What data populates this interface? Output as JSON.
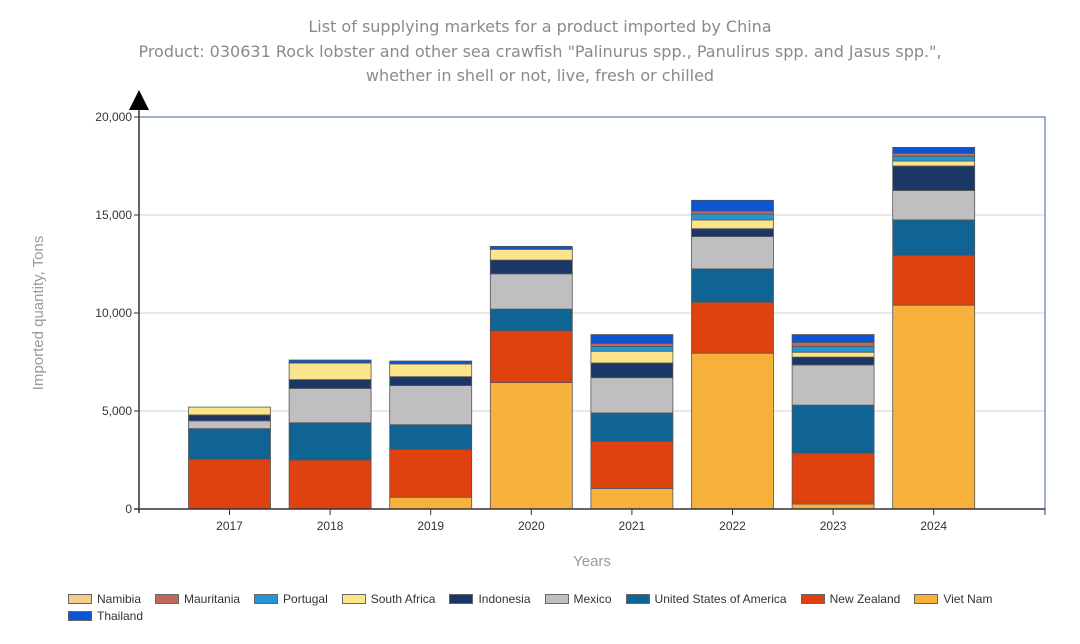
{
  "chart_data": {
    "type": "bar",
    "stacked": true,
    "title": "List of supplying markets for a product imported by China",
    "subtitle_lines": [
      "Product: 030631 Rock lobster and other sea crawfish \"Palinurus spp., Panulirus spp. and Jasus spp.\",",
      "whether in shell or not, live, fresh or chilled"
    ],
    "xlabel": "Years",
    "ylabel": "Imported quantity, Tons",
    "ylim": [
      0,
      20000
    ],
    "yticks": [
      0,
      5000,
      10000,
      15000,
      20000
    ],
    "ytick_labels": [
      "0",
      "5,000",
      "10,000",
      "15,000",
      "20,000"
    ],
    "grid": true,
    "legend_position": "bottom",
    "categories": [
      "2017",
      "2018",
      "2019",
      "2020",
      "2021",
      "2022",
      "2023",
      "2024"
    ],
    "series": [
      {
        "name": "Viet Nam",
        "color": "#f6b13c",
        "values": [
          0,
          0,
          600,
          6450,
          1050,
          7950,
          250,
          10400
        ]
      },
      {
        "name": "New Zealand",
        "color": "#e0420f",
        "values": [
          2550,
          2500,
          2450,
          2650,
          2400,
          2600,
          2600,
          2550
        ]
      },
      {
        "name": "United States of America",
        "color": "#0f6494",
        "values": [
          1550,
          1900,
          1250,
          1100,
          1450,
          1700,
          2450,
          1800
        ]
      },
      {
        "name": "Mexico",
        "color": "#bfbfc1",
        "values": [
          400,
          1750,
          2000,
          1800,
          1800,
          1650,
          2050,
          1500
        ]
      },
      {
        "name": "Indonesia",
        "color": "#1b3768",
        "values": [
          300,
          450,
          450,
          700,
          750,
          400,
          400,
          1250
        ]
      },
      {
        "name": "South Africa",
        "color": "#fce48a",
        "values": [
          400,
          850,
          650,
          550,
          600,
          450,
          250,
          250
        ]
      },
      {
        "name": "Portugal",
        "color": "#2496d6",
        "values": [
          0,
          0,
          0,
          0,
          250,
          300,
          300,
          250
        ]
      },
      {
        "name": "Mauritania",
        "color": "#c0695a",
        "values": [
          0,
          0,
          0,
          0,
          150,
          150,
          200,
          150
        ]
      },
      {
        "name": "Namibia",
        "color": "#f5cd8a",
        "values": [
          0,
          0,
          0,
          0,
          0,
          0,
          0,
          0
        ]
      },
      {
        "name": "Thailand",
        "color": "#0b55d4",
        "values": [
          0,
          150,
          150,
          150,
          450,
          550,
          400,
          300
        ]
      }
    ],
    "legend_order": [
      "Namibia",
      "Mauritania",
      "Portugal",
      "South Africa",
      "Indonesia",
      "Mexico",
      "United States of America",
      "New Zealand",
      "Viet Nam",
      "Thailand"
    ]
  }
}
